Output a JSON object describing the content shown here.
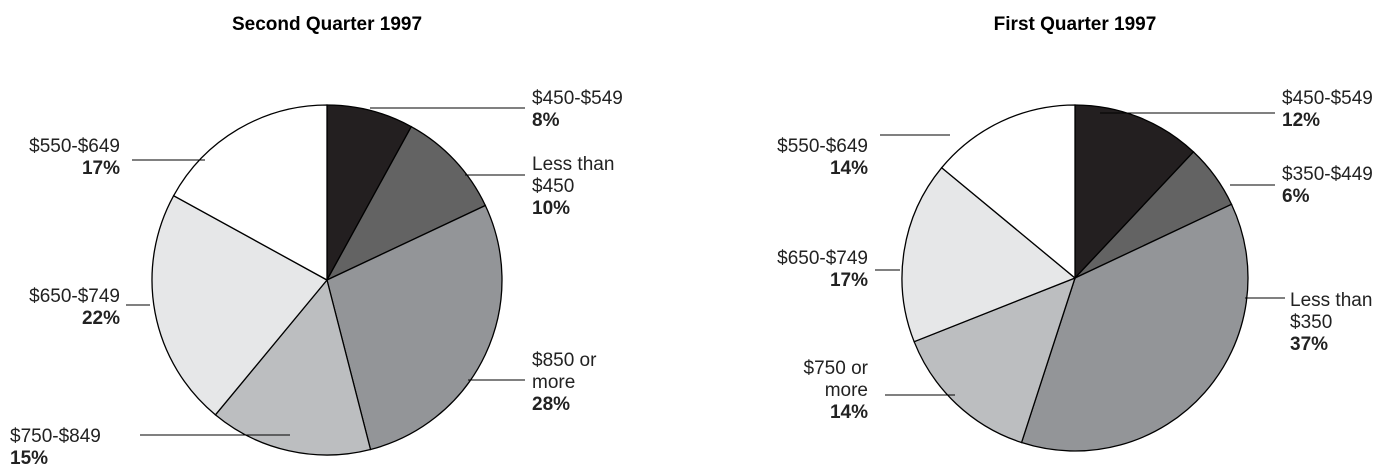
{
  "chart_data": [
    {
      "type": "pie",
      "title": "Second  Quarter 1997",
      "categories": [
        "$450-$549",
        "Less than $450",
        "$850 or more",
        "$750-$849",
        "$650-$749",
        "$550-$649"
      ],
      "values": [
        8,
        10,
        28,
        15,
        22,
        17
      ],
      "value_labels": [
        "8%",
        "10%",
        "28%",
        "15%",
        "22%",
        "17%"
      ],
      "colors": [
        "#231f20",
        "#636363",
        "#939598",
        "#bcbec0",
        "#e6e7e8",
        "#ffffff"
      ]
    },
    {
      "type": "pie",
      "title": "First Quarter 1997",
      "categories": [
        "$450-$549",
        "$350-$449",
        "Less than $350",
        "$750 or more",
        "$650-$749",
        "$550-$649"
      ],
      "values": [
        12,
        6,
        37,
        14,
        17,
        14
      ],
      "value_labels": [
        "12%",
        "6%",
        "37%",
        "14%",
        "17%",
        "14%"
      ],
      "colors": [
        "#231f20",
        "#636363",
        "#939598",
        "#bcbec0",
        "#e6e7e8",
        "#ffffff"
      ]
    }
  ]
}
